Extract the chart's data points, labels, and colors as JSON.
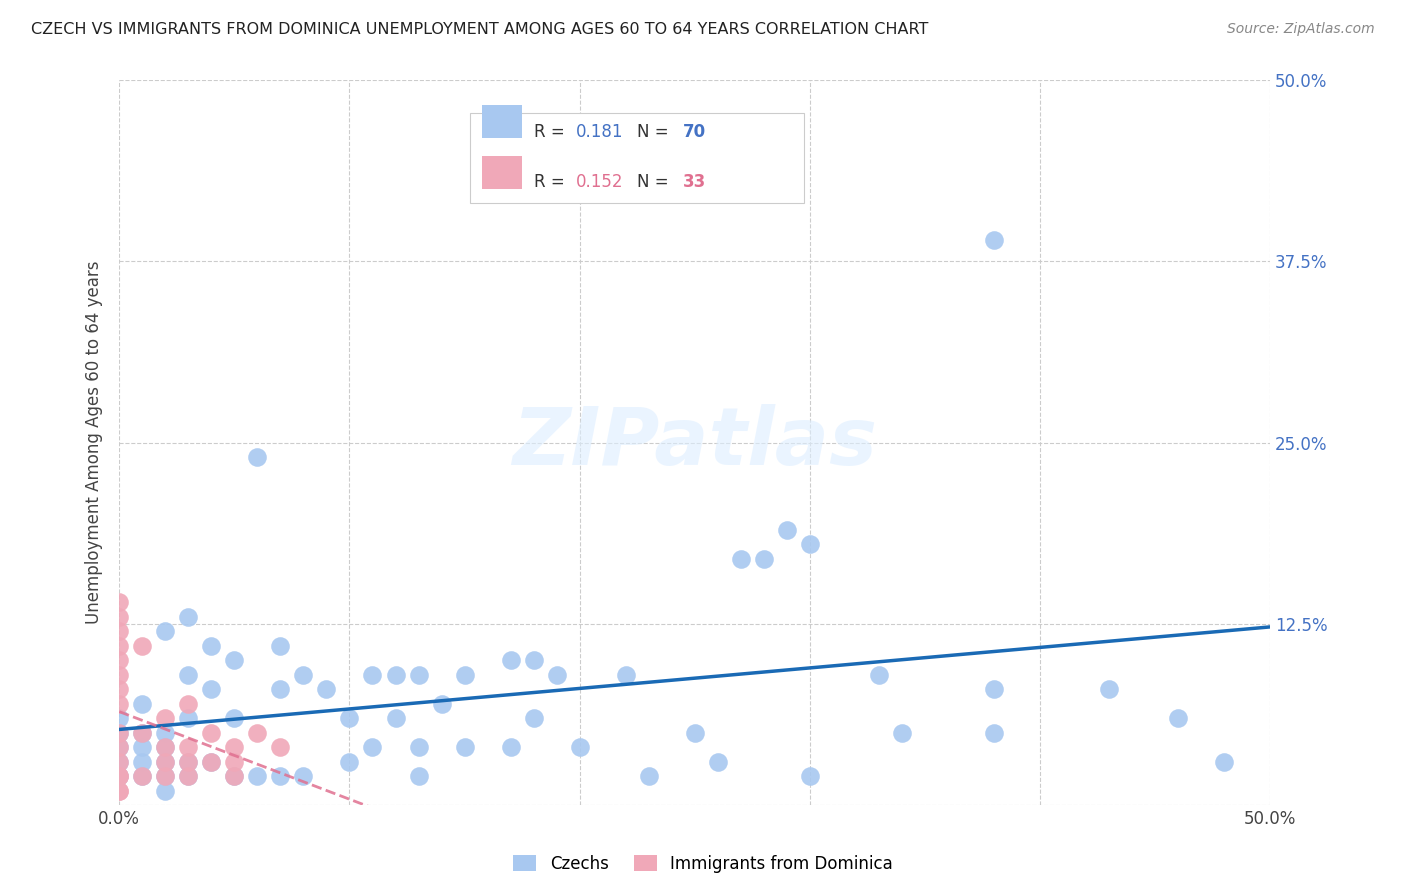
{
  "title": "CZECH VS IMMIGRANTS FROM DOMINICA UNEMPLOYMENT AMONG AGES 60 TO 64 YEARS CORRELATION CHART",
  "source": "Source: ZipAtlas.com",
  "ylabel": "Unemployment Among Ages 60 to 64 years",
  "xlim": [
    0.0,
    0.5
  ],
  "ylim": [
    0.0,
    0.5
  ],
  "xticks": [
    0.0,
    0.1,
    0.2,
    0.3,
    0.4,
    0.5
  ],
  "yticks": [
    0.0,
    0.125,
    0.25,
    0.375,
    0.5
  ],
  "right_ytick_labels": [
    "",
    "12.5%",
    "25.0%",
    "37.5%",
    "50.0%"
  ],
  "xtick_labels": [
    "0.0%",
    "",
    "",
    "",
    "",
    "50.0%"
  ],
  "legend_R1": "0.181",
  "legend_N1": "70",
  "legend_R2": "0.152",
  "legend_N2": "33",
  "legend_label1": "Czechs",
  "legend_label2": "Immigrants from Dominica",
  "blue_color": "#a8c8f0",
  "pink_color": "#f0a8b8",
  "blue_line_color": "#1a6ab5",
  "pink_line_color": "#e07090",
  "watermark_zip": "ZIP",
  "watermark_atlas": "atlas",
  "czechs_x": [
    0.0,
    0.0,
    0.0,
    0.0,
    0.0,
    0.01,
    0.01,
    0.01,
    0.01,
    0.01,
    0.02,
    0.02,
    0.02,
    0.02,
    0.02,
    0.02,
    0.03,
    0.03,
    0.03,
    0.03,
    0.03,
    0.04,
    0.04,
    0.04,
    0.05,
    0.05,
    0.05,
    0.06,
    0.06,
    0.07,
    0.07,
    0.07,
    0.08,
    0.08,
    0.09,
    0.1,
    0.1,
    0.11,
    0.11,
    0.12,
    0.12,
    0.13,
    0.13,
    0.13,
    0.14,
    0.15,
    0.15,
    0.17,
    0.17,
    0.18,
    0.18,
    0.19,
    0.2,
    0.22,
    0.23,
    0.25,
    0.26,
    0.27,
    0.28,
    0.29,
    0.3,
    0.3,
    0.33,
    0.34,
    0.38,
    0.38,
    0.38,
    0.43,
    0.46,
    0.48
  ],
  "czechs_y": [
    0.02,
    0.03,
    0.04,
    0.05,
    0.06,
    0.02,
    0.03,
    0.04,
    0.05,
    0.07,
    0.01,
    0.02,
    0.03,
    0.04,
    0.05,
    0.12,
    0.02,
    0.03,
    0.06,
    0.09,
    0.13,
    0.03,
    0.08,
    0.11,
    0.02,
    0.06,
    0.1,
    0.02,
    0.24,
    0.02,
    0.08,
    0.11,
    0.02,
    0.09,
    0.08,
    0.03,
    0.06,
    0.04,
    0.09,
    0.06,
    0.09,
    0.02,
    0.04,
    0.09,
    0.07,
    0.04,
    0.09,
    0.04,
    0.1,
    0.06,
    0.1,
    0.09,
    0.04,
    0.09,
    0.02,
    0.05,
    0.03,
    0.17,
    0.17,
    0.19,
    0.18,
    0.02,
    0.09,
    0.05,
    0.08,
    0.05,
    0.39,
    0.08,
    0.06,
    0.03
  ],
  "dominica_x": [
    0.0,
    0.0,
    0.0,
    0.0,
    0.0,
    0.0,
    0.0,
    0.0,
    0.0,
    0.0,
    0.0,
    0.0,
    0.0,
    0.0,
    0.0,
    0.01,
    0.01,
    0.01,
    0.02,
    0.02,
    0.02,
    0.02,
    0.03,
    0.03,
    0.03,
    0.03,
    0.04,
    0.04,
    0.05,
    0.05,
    0.05,
    0.06,
    0.07
  ],
  "dominica_y": [
    0.01,
    0.01,
    0.02,
    0.02,
    0.03,
    0.04,
    0.05,
    0.07,
    0.08,
    0.09,
    0.1,
    0.11,
    0.12,
    0.13,
    0.14,
    0.02,
    0.05,
    0.11,
    0.02,
    0.03,
    0.04,
    0.06,
    0.02,
    0.03,
    0.04,
    0.07,
    0.03,
    0.05,
    0.02,
    0.03,
    0.04,
    0.05,
    0.04
  ]
}
